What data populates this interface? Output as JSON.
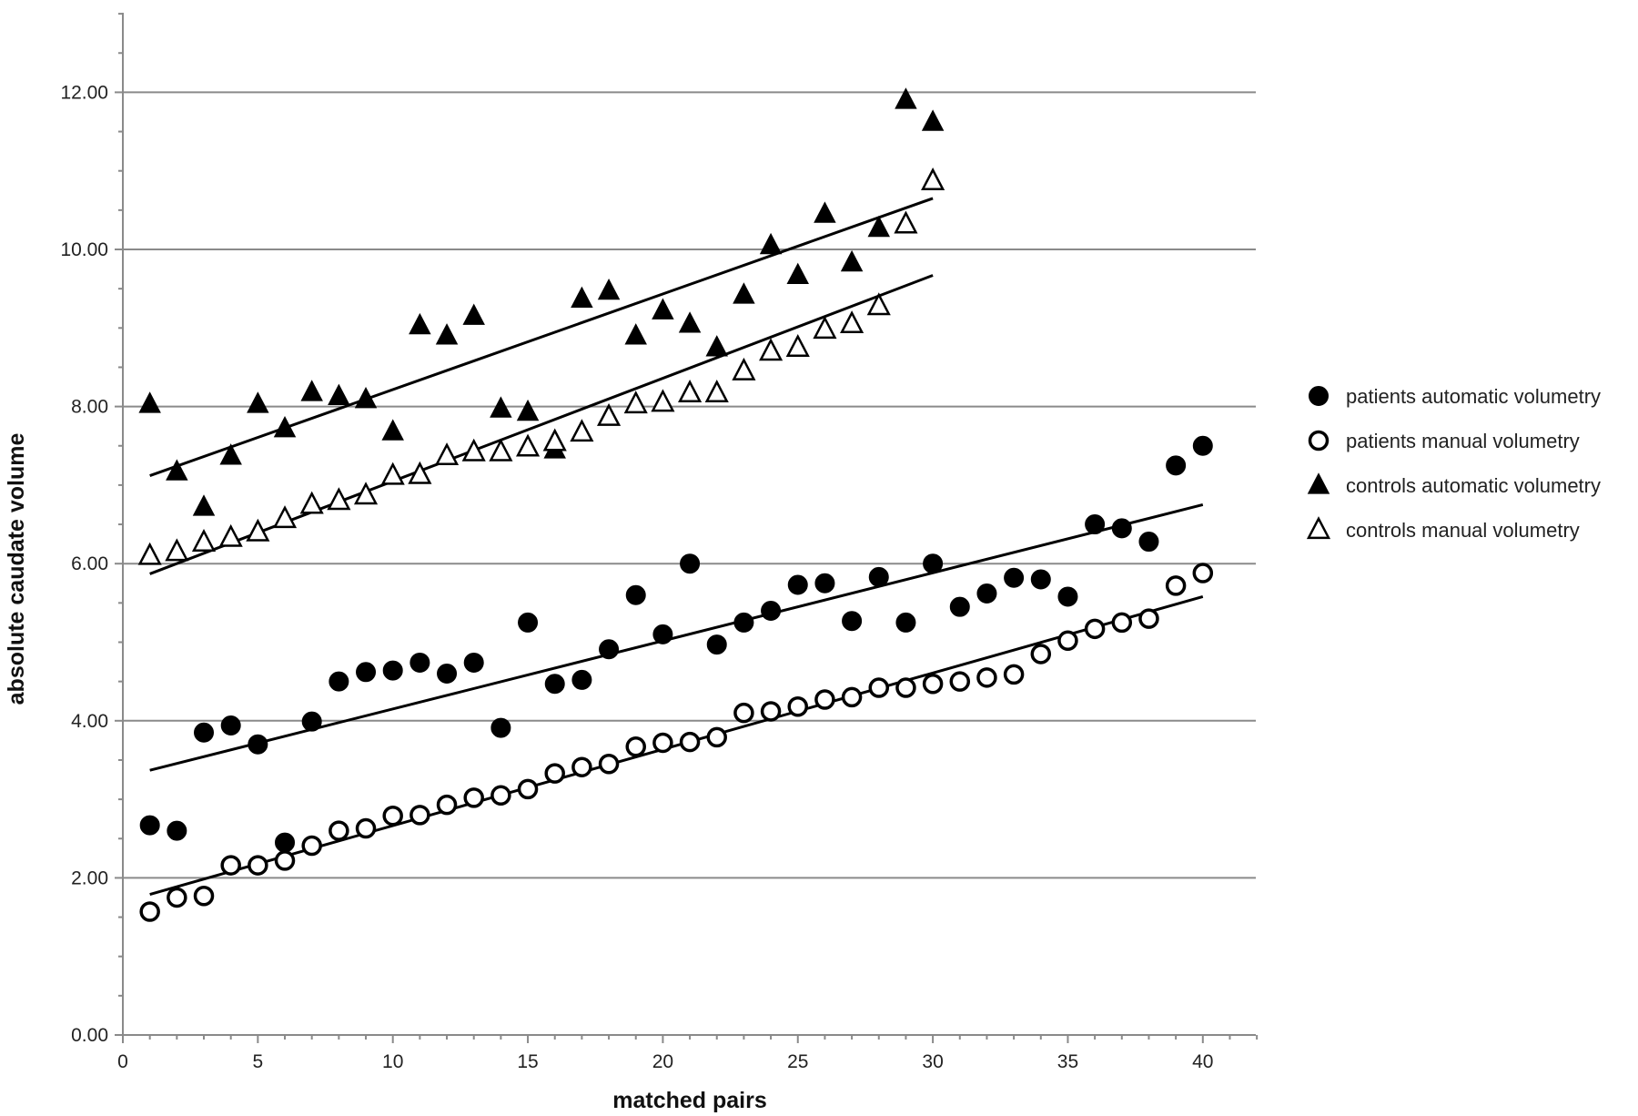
{
  "chart_data": {
    "type": "scatter",
    "title": "",
    "xlabel": "matched pairs",
    "ylabel": "absolute caudate volume",
    "xlim": [
      0,
      42
    ],
    "ylim": [
      0,
      13
    ],
    "xticks": [
      0,
      5,
      10,
      15,
      20,
      25,
      30,
      35,
      40
    ],
    "xtick_labels": [
      "0",
      "5",
      "10",
      "15",
      "20",
      "25",
      "30",
      "35",
      "40"
    ],
    "yticks": [
      0,
      2,
      4,
      6,
      8,
      10,
      12
    ],
    "ytick_labels": [
      "0.00",
      "2.00",
      "4.00",
      "6.00",
      "8.00",
      "10.00",
      "12.00"
    ],
    "grid": "horizontal",
    "legend_position": "right",
    "series": [
      {
        "name": "patients automatic volumetry",
        "marker": "filled-circle",
        "x": [
          1,
          2,
          3,
          4,
          5,
          6,
          7,
          8,
          9,
          10,
          11,
          12,
          13,
          14,
          15,
          16,
          17,
          18,
          19,
          20,
          21,
          22,
          23,
          24,
          25,
          26,
          27,
          28,
          29,
          30,
          31,
          32,
          33,
          34,
          35,
          36,
          37,
          38,
          39,
          40
        ],
        "values": [
          2.67,
          2.6,
          3.85,
          3.94,
          3.7,
          2.45,
          3.99,
          4.5,
          4.62,
          4.64,
          4.74,
          4.6,
          4.74,
          3.91,
          5.25,
          4.47,
          4.52,
          4.91,
          5.6,
          5.1,
          6.0,
          4.97,
          5.25,
          5.4,
          5.73,
          5.75,
          5.27,
          5.83,
          5.25,
          6.0,
          5.45,
          5.62,
          5.82,
          5.8,
          5.58,
          6.5,
          6.45,
          6.28,
          7.25,
          7.5
        ],
        "trendline": {
          "x": [
            1,
            40
          ],
          "y": [
            3.37,
            6.75
          ]
        }
      },
      {
        "name": "patients manual volumetry",
        "marker": "open-circle",
        "x": [
          1,
          2,
          3,
          4,
          5,
          6,
          7,
          8,
          9,
          10,
          11,
          12,
          13,
          14,
          15,
          16,
          17,
          18,
          19,
          20,
          21,
          22,
          23,
          24,
          25,
          26,
          27,
          28,
          29,
          30,
          31,
          32,
          33,
          34,
          35,
          36,
          37,
          38,
          39,
          40
        ],
        "values": [
          1.57,
          1.75,
          1.77,
          2.16,
          2.16,
          2.22,
          2.41,
          2.6,
          2.63,
          2.79,
          2.8,
          2.93,
          3.02,
          3.05,
          3.13,
          3.33,
          3.41,
          3.45,
          3.67,
          3.72,
          3.73,
          3.79,
          4.1,
          4.12,
          4.18,
          4.27,
          4.3,
          4.42,
          4.42,
          4.47,
          4.5,
          4.55,
          4.59,
          4.85,
          5.02,
          5.17,
          5.25,
          5.3,
          5.72,
          5.88
        ],
        "trendline": {
          "x": [
            1,
            40
          ],
          "y": [
            1.79,
            5.58
          ]
        }
      },
      {
        "name": "controls automatic volumetry",
        "marker": "filled-triangle",
        "x": [
          1,
          2,
          3,
          4,
          5,
          6,
          7,
          8,
          9,
          10,
          11,
          12,
          13,
          14,
          15,
          16,
          17,
          18,
          19,
          20,
          21,
          22,
          23,
          24,
          25,
          26,
          27,
          28,
          29,
          30
        ],
        "values": [
          8.03,
          7.17,
          6.72,
          7.37,
          8.03,
          7.72,
          8.18,
          8.13,
          8.09,
          7.68,
          9.03,
          8.9,
          9.15,
          7.97,
          7.93,
          7.45,
          9.37,
          9.47,
          8.9,
          9.22,
          9.05,
          8.75,
          9.42,
          10.05,
          9.67,
          10.45,
          9.83,
          10.27,
          11.9,
          11.62
        ],
        "trendline": {
          "x": [
            1,
            30
          ],
          "y": [
            7.12,
            10.65
          ]
        }
      },
      {
        "name": "controls manual volumetry",
        "marker": "open-triangle",
        "x": [
          1,
          2,
          3,
          4,
          5,
          6,
          7,
          8,
          9,
          10,
          11,
          12,
          13,
          14,
          15,
          16,
          17,
          18,
          19,
          20,
          21,
          22,
          23,
          24,
          25,
          26,
          27,
          28,
          29,
          30
        ],
        "values": [
          6.1,
          6.15,
          6.27,
          6.33,
          6.4,
          6.57,
          6.75,
          6.8,
          6.87,
          7.12,
          7.13,
          7.37,
          7.42,
          7.42,
          7.48,
          7.55,
          7.67,
          7.87,
          8.03,
          8.05,
          8.17,
          8.17,
          8.45,
          8.7,
          8.75,
          8.98,
          9.05,
          9.28,
          10.32,
          10.87
        ],
        "trendline": {
          "x": [
            1,
            30
          ],
          "y": [
            5.87,
            9.67
          ]
        }
      }
    ]
  }
}
